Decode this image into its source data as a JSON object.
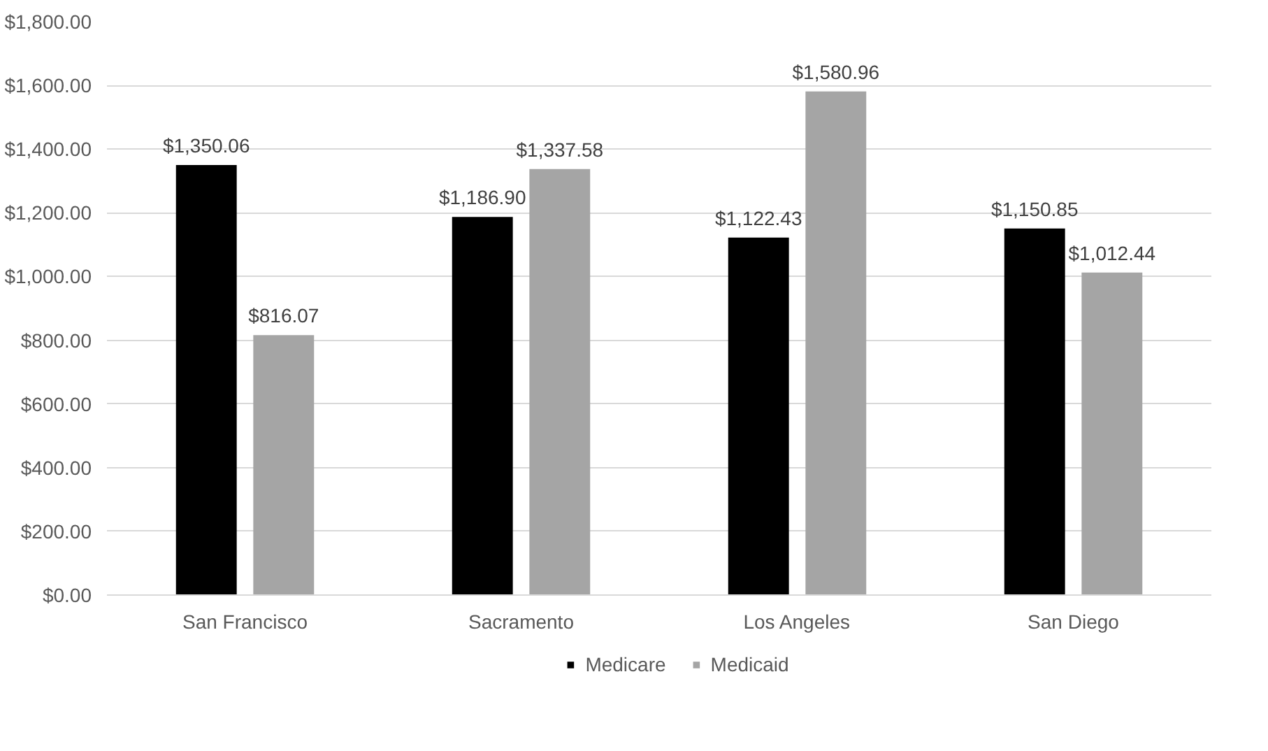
{
  "chart_data": {
    "type": "bar",
    "categories": [
      "San Francisco",
      "Sacramento",
      "Los Angeles",
      "San Diego"
    ],
    "series": [
      {
        "name": "Medicare",
        "color": "#000000",
        "values": [
          1350.06,
          1186.9,
          1122.43,
          1150.85
        ],
        "value_labels": [
          "$1,350.06",
          "$1,186.90",
          "$1,122.43",
          "$1,150.85"
        ]
      },
      {
        "name": "Medicaid",
        "color": "#a5a5a5",
        "values": [
          816.07,
          1337.58,
          1580.96,
          1012.44
        ],
        "value_labels": [
          "$816.07",
          "$1,337.58",
          "$1,580.96",
          "$1,012.44"
        ]
      }
    ],
    "ylim": [
      0,
      1800
    ],
    "yticks": [
      {
        "value": 0,
        "label": "$0.00"
      },
      {
        "value": 200,
        "label": "$200.00"
      },
      {
        "value": 400,
        "label": "$400.00"
      },
      {
        "value": 600,
        "label": "$600.00"
      },
      {
        "value": 800,
        "label": "$800.00"
      },
      {
        "value": 1000,
        "label": "$1,000.00"
      },
      {
        "value": 1200,
        "label": "$1,200.00"
      },
      {
        "value": 1400,
        "label": "$1,400.00"
      },
      {
        "value": 1600,
        "label": "$1,600.00"
      },
      {
        "value": 1800,
        "label": "$1,800.00"
      }
    ],
    "grid": "y",
    "legend": "bottom"
  }
}
